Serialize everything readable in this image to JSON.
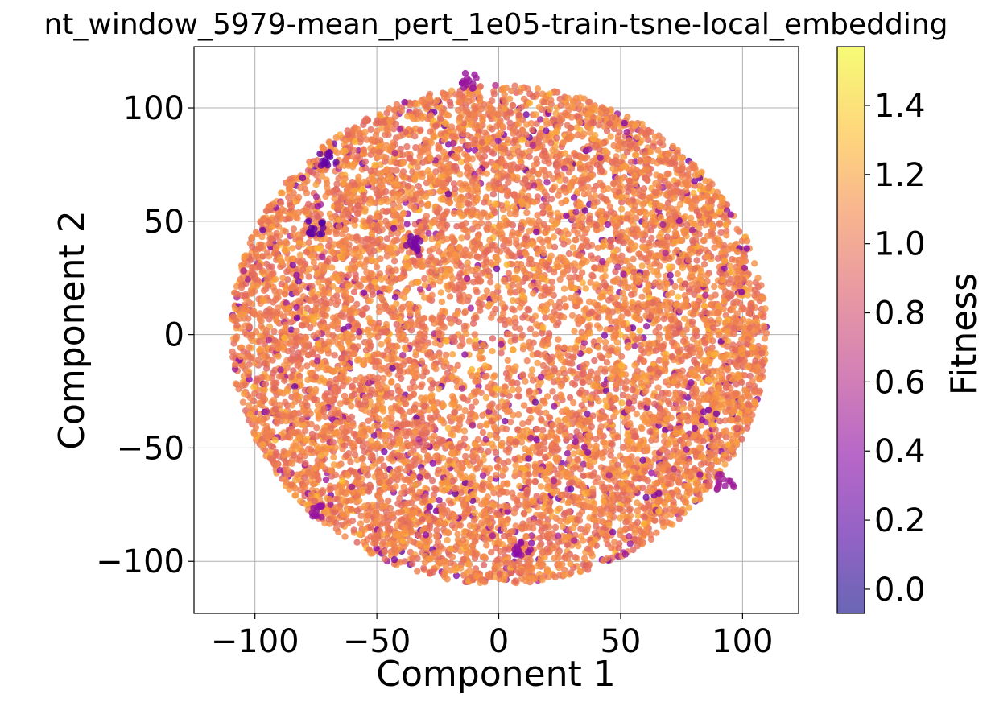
{
  "chart_data": {
    "type": "scatter",
    "title": "nt_window_5979-mean_pert_1e05-train-tsne-local_embedding",
    "xlabel": "Component 1",
    "ylabel": "Component 2",
    "xlim": [
      -125,
      123
    ],
    "ylim": [
      -123,
      127
    ],
    "xticks": [
      -100,
      -50,
      0,
      50,
      100
    ],
    "xtick_labels": [
      "−100",
      "−50",
      "0",
      "50",
      "100"
    ],
    "yticks": [
      -100,
      -50,
      0,
      50,
      100
    ],
    "ytick_labels": [
      "−100",
      "−50",
      "0",
      "50",
      "100"
    ],
    "grid": true,
    "colorbar": {
      "label": "Fitness",
      "colormap": "plasma",
      "vmin": -0.07,
      "vmax": 1.57,
      "ticks": [
        0.0,
        0.2,
        0.4,
        0.6,
        0.8,
        1.0,
        1.2,
        1.4
      ],
      "tick_labels": [
        "0.0",
        "0.2",
        "0.4",
        "0.6",
        "0.8",
        "1.0",
        "1.2",
        "1.4"
      ]
    },
    "point_cloud": {
      "shape": "disc",
      "center": [
        0,
        0
      ],
      "radius": 110,
      "dominant_fitness_range": [
        0.9,
        1.2
      ],
      "approx_points": 9000
    },
    "notable_clusters": [
      {
        "x": -70,
        "y": 78,
        "fitness": 0.25
      },
      {
        "x": -75,
        "y": 47,
        "fitness": 0.2
      },
      {
        "x": -12,
        "y": 112,
        "fitness": 0.45
      },
      {
        "x": -35,
        "y": 40,
        "fitness": 0.3
      },
      {
        "x": 10,
        "y": -95,
        "fitness": 0.4
      },
      {
        "x": -75,
        "y": -78,
        "fitness": 0.45
      },
      {
        "x": 93,
        "y": -65,
        "fitness": 0.5
      }
    ]
  }
}
